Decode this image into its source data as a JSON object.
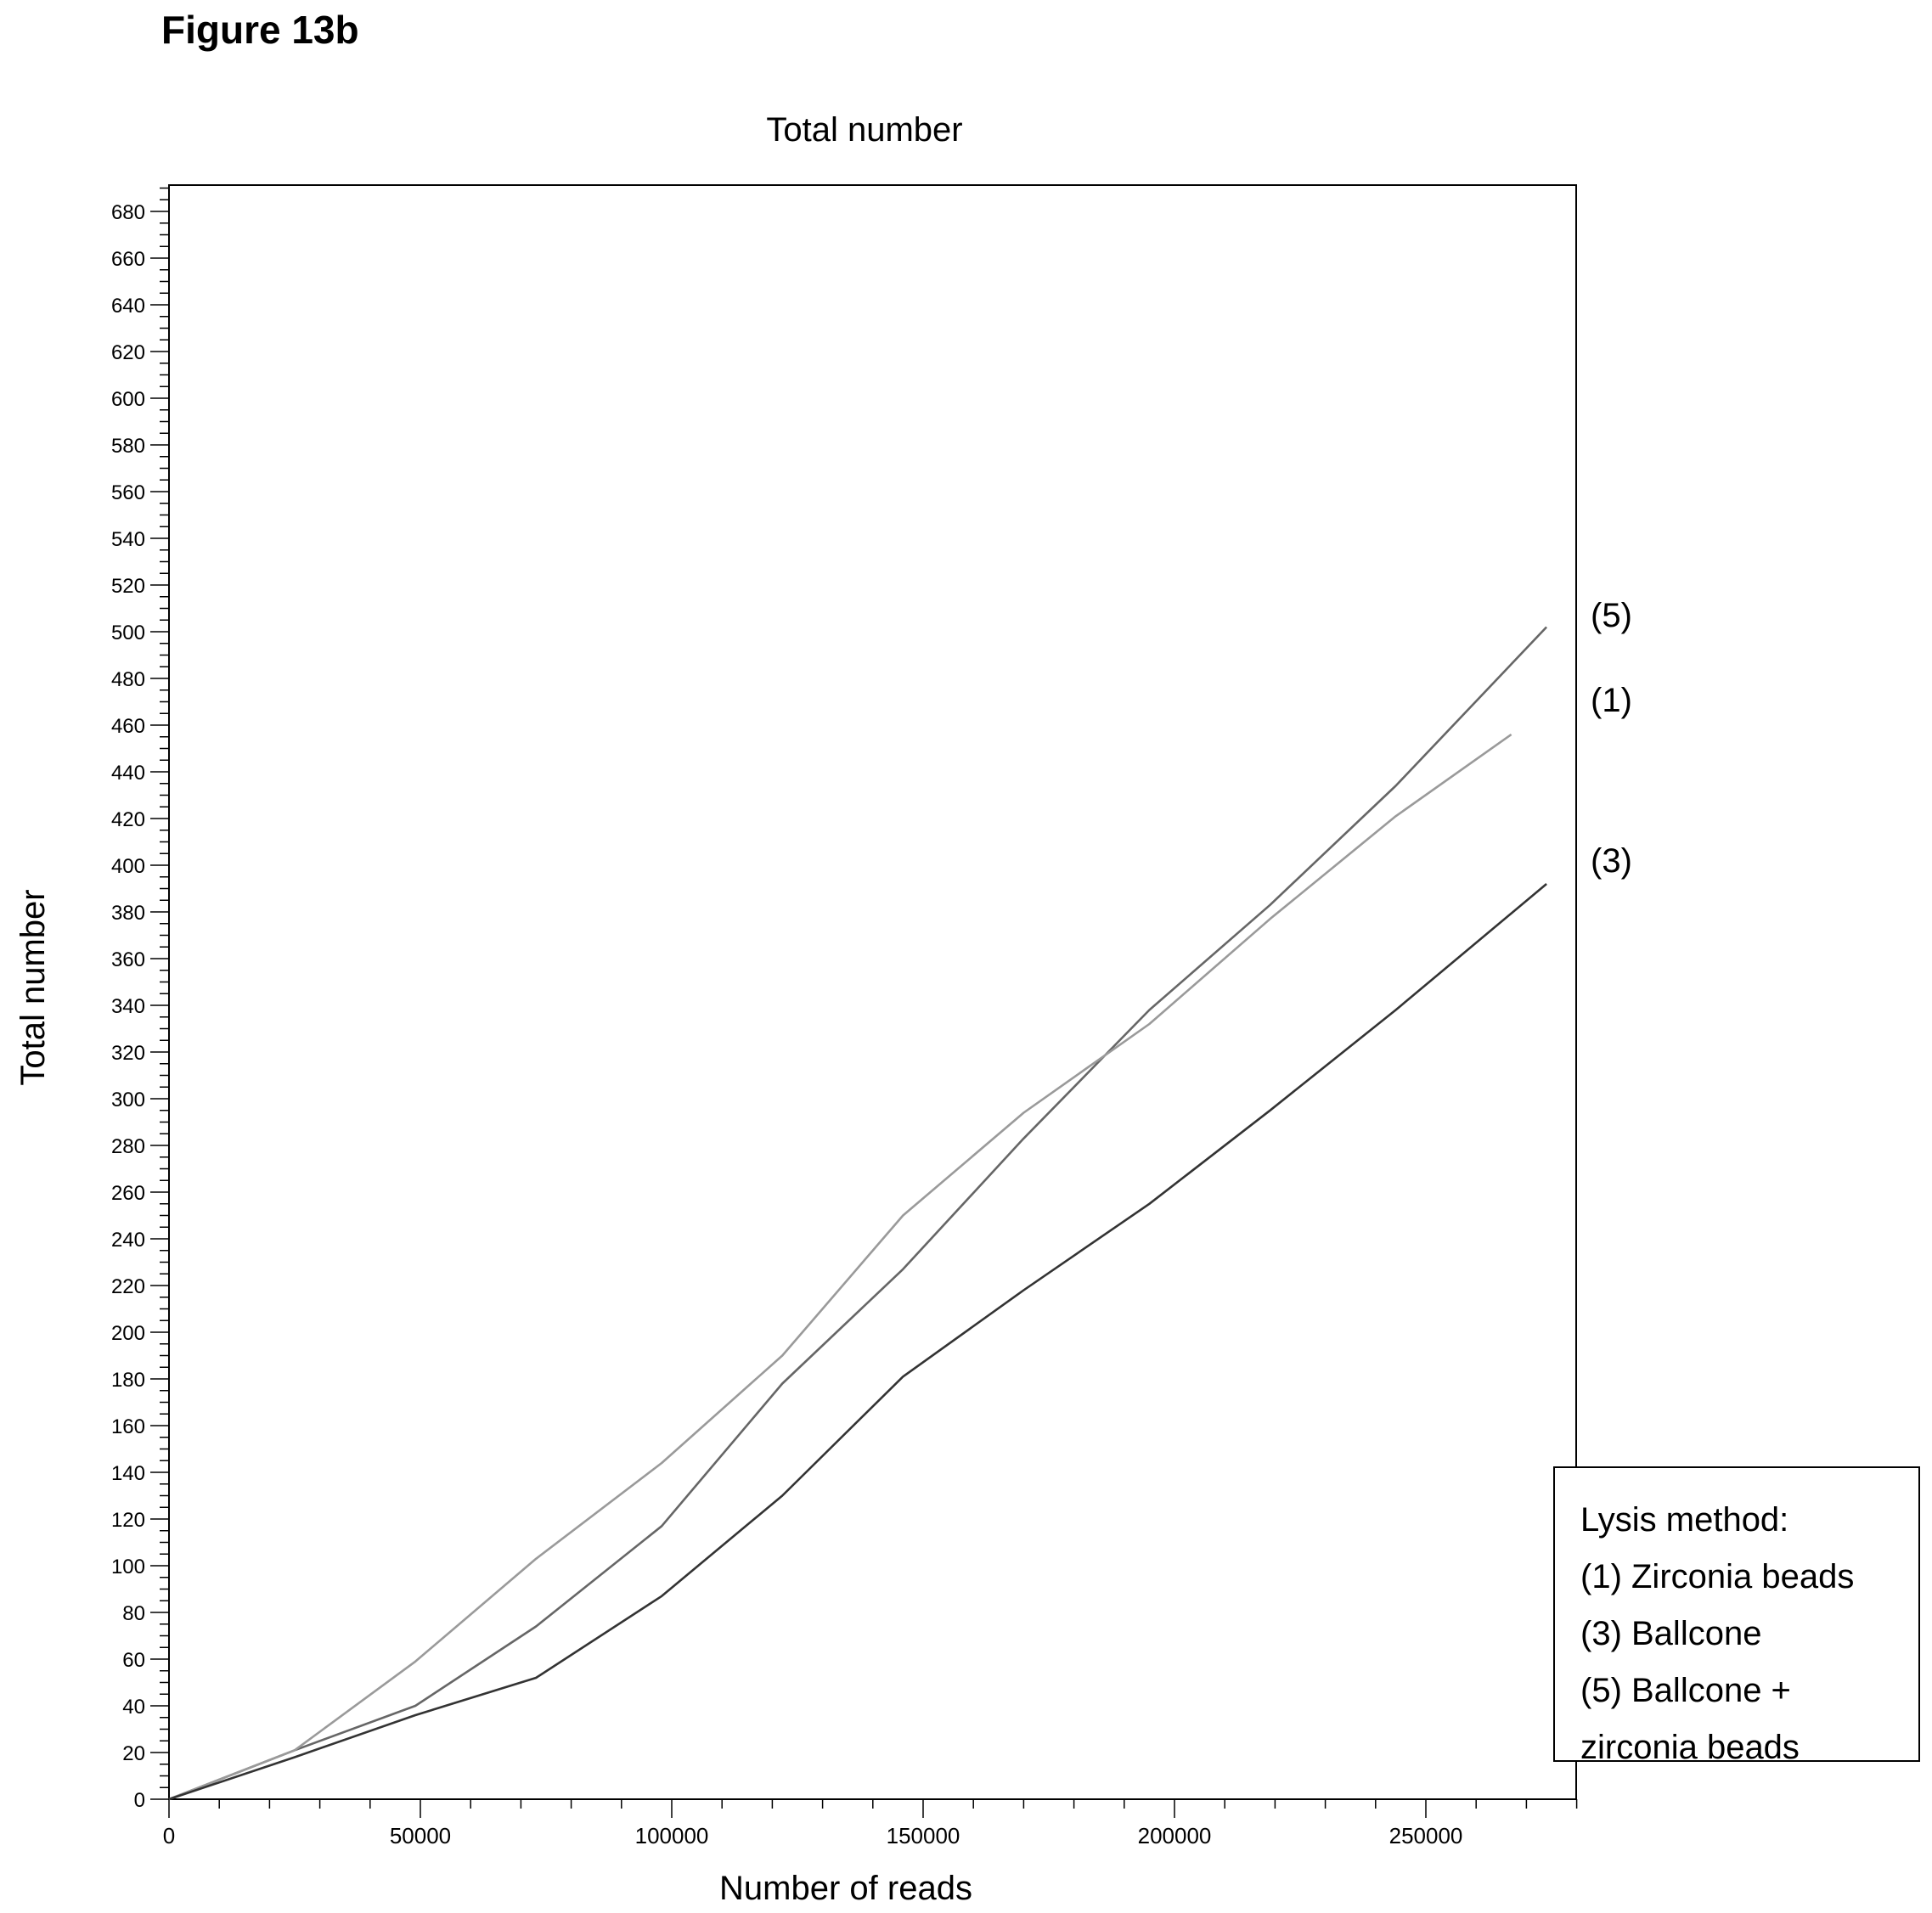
{
  "figure_label": "Figure 13b",
  "chart_data": {
    "type": "line",
    "title": "Total number",
    "xlabel": "Number of reads",
    "ylabel": "Total number",
    "xlim": [
      0,
      280000
    ],
    "ylim": [
      0,
      690
    ],
    "x_ticks": [
      0,
      50000,
      100000,
      150000,
      200000,
      250000
    ],
    "y_ticks": [
      0,
      20,
      40,
      60,
      80,
      100,
      120,
      140,
      160,
      180,
      200,
      220,
      240,
      260,
      280,
      300,
      320,
      340,
      360,
      380,
      400,
      420,
      440,
      460,
      480,
      500,
      520,
      540,
      560,
      580,
      600,
      620,
      640,
      660,
      680
    ],
    "grid": false,
    "series": [
      {
        "name": "(5)",
        "color": "#666666",
        "x": [
          0,
          25000,
          49000,
          73000,
          98000,
          122000,
          146000,
          170000,
          195000,
          219000,
          244000,
          274000
        ],
        "y": [
          0,
          21,
          40,
          74,
          117,
          178,
          227,
          283,
          338,
          383,
          434,
          502
        ]
      },
      {
        "name": "(1)",
        "color": "#9a9a9a",
        "x": [
          0,
          25000,
          49000,
          73000,
          98000,
          122000,
          146000,
          170000,
          195000,
          219000,
          244000,
          267000
        ],
        "y": [
          0,
          21,
          59,
          103,
          144,
          190,
          250,
          294,
          332,
          377,
          421,
          456
        ]
      },
      {
        "name": "(3)",
        "color": "#333333",
        "x": [
          0,
          25000,
          49000,
          73000,
          98000,
          122000,
          146000,
          170000,
          195000,
          219000,
          244000,
          274000
        ],
        "y": [
          0,
          18,
          36,
          52,
          87,
          130,
          181,
          218,
          255,
          295,
          338,
          392
        ]
      }
    ],
    "legend": {
      "placement": "bottom-right outside",
      "title": "Lysis method:",
      "entries": [
        "(1) Zirconia beads",
        "(3) Ballcone",
        "(5) Ballcone +",
        "zirconia beads"
      ]
    }
  }
}
